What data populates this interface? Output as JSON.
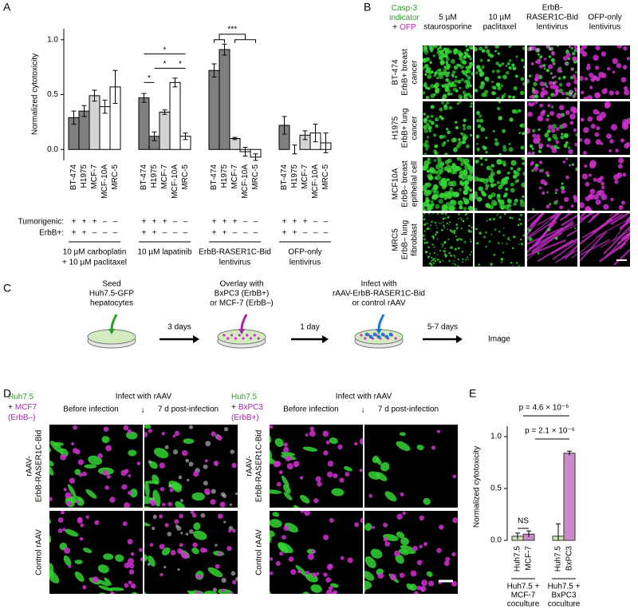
{
  "panel_labels": [
    "A",
    "B",
    "C",
    "D",
    "E"
  ],
  "chart_data": [
    {
      "type": "bar",
      "y_label": "Normalized cytotoxicity",
      "categories": [
        [
          "10 µM carboplatin",
          "+ 10 µM paclitaxel"
        ],
        [
          "10 µM lapatinib"
        ],
        [
          "ErbB-RASER1C-Bid",
          "lentivirus"
        ],
        [
          "OFP-only",
          "lentivirus"
        ]
      ],
      "row_labels": [
        "Tumorigenic:",
        "ErbB+:"
      ],
      "series": [
        {
          "name": "BT-474",
          "color": "#7f7f7f",
          "tumorigenic": "+",
          "erbb": "+",
          "values": [
            0.29,
            0.47,
            0.72,
            0.22
          ],
          "errors": [
            0.06,
            0.04,
            0.06,
            0.08
          ]
        },
        {
          "name": "H1975",
          "color": "#7f7f7f",
          "tumorigenic": "+",
          "erbb": "+",
          "values": [
            0.35,
            0.12,
            0.91,
            0.0
          ],
          "errors": [
            0.05,
            0.04,
            0.05,
            0.04
          ]
        },
        {
          "name": "MCF-7",
          "color": "#d4d4d4",
          "tumorigenic": "+",
          "erbb": "–",
          "values": [
            0.49,
            0.34,
            0.1,
            0.13
          ],
          "errors": [
            0.05,
            0.02,
            0.01,
            0.04
          ]
        },
        {
          "name": "MCF-10A",
          "color": "#ffffff",
          "tumorigenic": "–",
          "erbb": "–",
          "values": [
            0.39,
            0.61,
            -0.02,
            0.15
          ],
          "errors": [
            0.06,
            0.04,
            0.04,
            0.08
          ]
        },
        {
          "name": "MRC-5",
          "color": "#ffffff",
          "tumorigenic": "–",
          "erbb": "–",
          "values": [
            0.57,
            0.12,
            -0.07,
            0.06
          ],
          "errors": [
            0.15,
            0.03,
            0.03,
            0.09
          ]
        }
      ],
      "significance": [
        "*",
        "*",
        "*",
        "*",
        "***"
      ],
      "ylim": [
        -0.1,
        1.1
      ],
      "yticks": [
        {
          "value": 0,
          "label": "0.0"
        },
        {
          "value": 0.5,
          "label": "0.5"
        },
        {
          "value": 1,
          "label": "1.0"
        }
      ]
    },
    {
      "type": "bar",
      "y_label": "Normalized cytotoxicity",
      "categories": [
        "Huh7.5",
        "MCF-7",
        "Huh7.5",
        "BxPC3"
      ],
      "label_colors": [
        "#2a9d2a",
        "#a22aa2",
        "#2a9d2a",
        "#a22aa2"
      ],
      "colors": [
        "#cfe6b5",
        "#c98bc9",
        "#cfe6b5",
        "#c98bc9"
      ],
      "values": [
        0.04,
        0.06,
        0.04,
        0.84
      ],
      "errors": [
        0.03,
        0.03,
        0.12,
        0.02
      ],
      "groups": [
        [
          "Huh7.5 +",
          "MCF-7",
          "coculture"
        ],
        [
          "Huh7.5 +",
          "BxPC3",
          "coculture"
        ]
      ],
      "annotations": [
        "NS",
        "p = 4.6 × 10⁻⁶",
        "p = 2.1 × 10⁻⁶"
      ],
      "ylim": [
        0,
        1.1
      ],
      "yticks": [
        {
          "value": 0,
          "label": "0.0"
        },
        {
          "value": 0.5,
          "label": "0.5"
        },
        {
          "value": 1,
          "label": "1.0"
        }
      ]
    }
  ],
  "panel_b": {
    "legend": [
      [
        {
          "text": "Casp-3",
          "color": "#2a9d2a"
        }
      ],
      [
        {
          "text": "indicator",
          "color": "#2a9d2a"
        }
      ],
      [
        {
          "text": "+",
          "color": "#000000"
        },
        {
          "text": "OFP",
          "color": "#c020c0"
        }
      ]
    ],
    "columns": [
      [
        "5 µM",
        "staurosporine"
      ],
      [
        "10 µM",
        "paclitaxel"
      ],
      [
        "ErbB-",
        "RASER1C-Bid",
        "lentivirus"
      ],
      [
        "OFP-only",
        "lentivirus"
      ]
    ],
    "rows": [
      [
        "BT-474",
        "ErbB+ breast",
        "cancer"
      ],
      [
        "H1975",
        "ErbB+ lung",
        "cancer"
      ],
      [
        "MCF10A",
        "ErbB– breast",
        "epithelial cell"
      ],
      [
        "MRC5",
        "ErbB– lung",
        "fibroblast"
      ]
    ]
  },
  "panel_c": {
    "steps": [
      {
        "lines": [
          "Seed",
          "Huh7.5-GFP",
          "hepatocytes"
        ],
        "color": "#2a9d2a"
      },
      {
        "lines": [
          "Overlay with",
          "BxPC3 (ErbB+)",
          "or MCF-7 (ErbB–)"
        ],
        "color": "#a22aa2"
      },
      {
        "lines": [
          "Infect with",
          "rAAV-ErbB-RASER1C-Bid",
          "or control rAAV"
        ],
        "color": "#1f78c8"
      }
    ],
    "intervals": [
      "3 days",
      "1 day",
      "5-7 days"
    ],
    "final": "Image"
  },
  "panel_d": {
    "infect": {
      "text": "Infect with rAAV",
      "color": "#1f78c8"
    },
    "before": "Before infection",
    "arrow": "↓",
    "after": "7 d post-infection",
    "rows": [
      [
        "rAAV-",
        "ErbB-RASER1C-Bid"
      ],
      [
        "Control rAAV"
      ]
    ],
    "blocks": [
      {
        "legend": [
          [
            {
              "text": "Huh7.5",
              "color": "#2a9d2a"
            }
          ],
          [
            {
              "text": "+",
              "color": "#000000"
            },
            {
              "text": "MCF7",
              "color": "#a22aa2"
            }
          ],
          [
            {
              "text": "(ErbB–)",
              "color": "#a22aa2"
            }
          ]
        ]
      },
      {
        "legend": [
          [
            {
              "text": "Huh7.5",
              "color": "#2a9d2a"
            }
          ],
          [
            {
              "text": "+",
              "color": "#000000"
            },
            {
              "text": "BxPC3",
              "color": "#a22aa2"
            }
          ],
          [
            {
              "text": "(ErbB+)",
              "color": "#a22aa2"
            }
          ]
        ]
      }
    ]
  }
}
